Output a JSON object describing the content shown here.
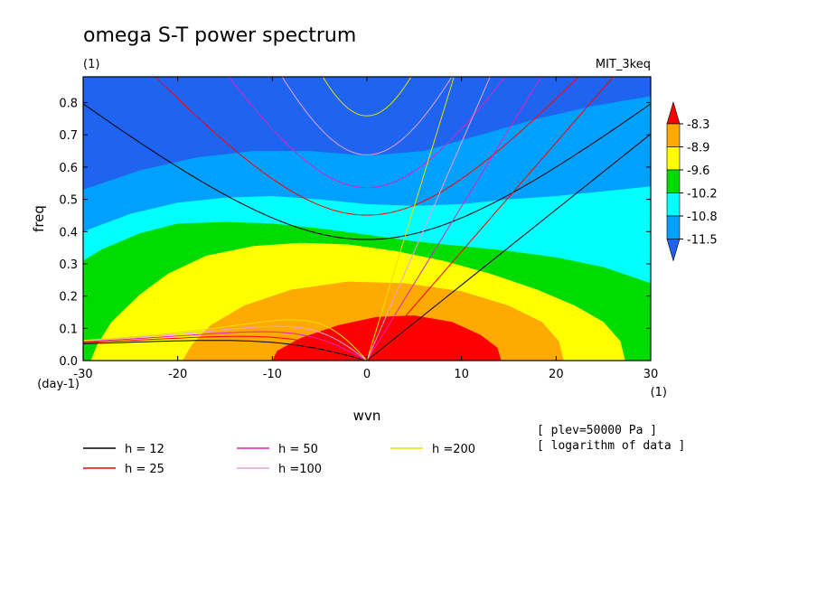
{
  "title": "omega S-T power spectrum",
  "subtitle_left": "(1)",
  "subtitle_right": "MIT_3keq",
  "chart_data": {
    "type": "heatmap",
    "title": "omega S-T power spectrum",
    "xlabel": "wvn",
    "ylabel": "freq",
    "x_unit": "(1)",
    "y_unit": "(day-1)",
    "xlim": [
      -30,
      30
    ],
    "ylim": [
      0,
      0.88
    ],
    "xticks": [
      "-30",
      "-20",
      "-10",
      "0",
      "10",
      "20",
      "30"
    ],
    "yticks": [
      "0.0",
      "0.1",
      "0.2",
      "0.3",
      "0.4",
      "0.5",
      "0.6",
      "0.7",
      "0.8"
    ],
    "colorbar": {
      "levels": [
        "-8.3",
        "-8.9",
        "-9.6",
        "-10.2",
        "-10.8",
        "-11.5"
      ],
      "colors": [
        "#1e64f0",
        "#00a0ff",
        "#00ffff",
        "#00dc00",
        "#ffff00",
        "#ffaa00",
        "#ff0000"
      ]
    },
    "contour_bands": [
      {
        "level": "-11.5",
        "color": "#1e64f0"
      },
      {
        "level": "-10.8",
        "color": "#00a0ff"
      },
      {
        "level": "-10.2",
        "color": "#00ffff"
      },
      {
        "level": "-9.6",
        "color": "#00dc00"
      },
      {
        "level": "-8.9",
        "color": "#ffff00"
      },
      {
        "level": "-8.3",
        "color": "#ffaa00"
      },
      {
        "level": "max",
        "color": "#ff0000"
      }
    ],
    "dispersion_curves": [
      {
        "label": "h = 12",
        "h": 12,
        "color": "#000000"
      },
      {
        "label": "h = 25",
        "h": 25,
        "color": "#ff0000"
      },
      {
        "label": "h = 50",
        "h": 50,
        "color": "#e020c0"
      },
      {
        "label": "h =100",
        "h": 100,
        "color": "#e8a0e0"
      },
      {
        "label": "h =200",
        "h": 200,
        "color": "#e8e000"
      }
    ],
    "notes": [
      "[ plev=50000 Pa ]",
      "[ logarithm of data ]"
    ]
  }
}
